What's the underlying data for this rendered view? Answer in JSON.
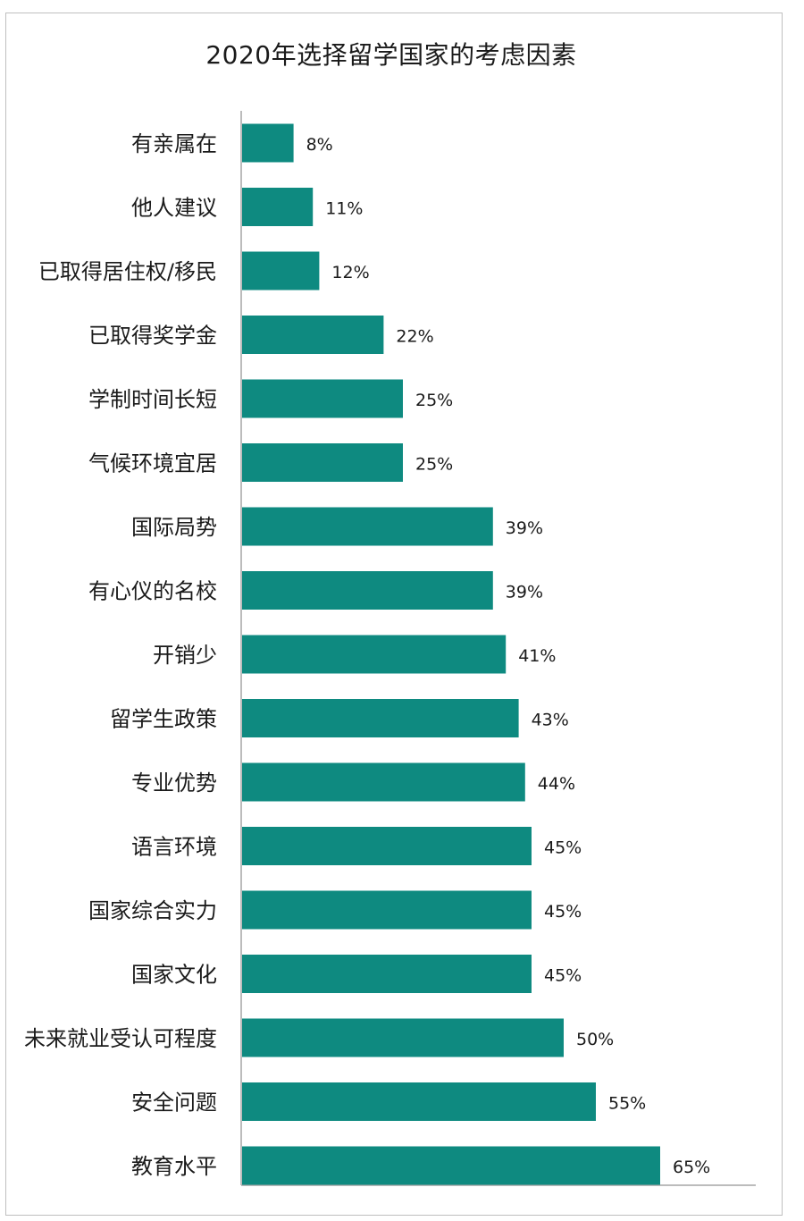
{
  "chart_data": {
    "type": "bar",
    "orientation": "horizontal",
    "title": "2020年选择留学国家的考虑因素",
    "categories": [
      "有亲属在",
      "他人建议",
      "已取得居住权/移民",
      "已取得奖学金",
      "学制时间长短",
      "气候环境宜居",
      "国际局势",
      "有心仪的名校",
      "开销少",
      "留学生政策",
      "专业优势",
      "语言环境",
      "国家综合实力",
      "国家文化",
      "未来就业受认可程度",
      "安全问题",
      "教育水平"
    ],
    "values": [
      8,
      11,
      12,
      22,
      25,
      25,
      39,
      39,
      41,
      43,
      44,
      45,
      45,
      45,
      50,
      55,
      65
    ],
    "value_labels": [
      "8%",
      "11%",
      "12%",
      "22%",
      "25%",
      "25%",
      "39%",
      "39%",
      "41%",
      "43%",
      "44%",
      "45%",
      "45%",
      "45%",
      "50%",
      "55%",
      "65%"
    ],
    "unit": "%",
    "xlim": [
      0,
      80
    ],
    "grid": false,
    "legend": "none",
    "bar_color": "#0e8a80"
  }
}
